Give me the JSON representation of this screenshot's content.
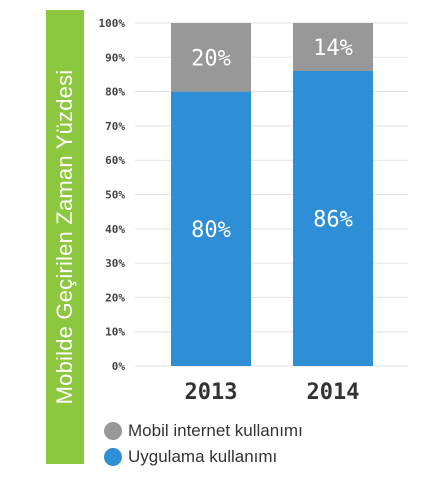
{
  "side_title": "Mobilde Geçirilen Zaman Yüzdesi",
  "chart_data": {
    "type": "bar",
    "stacked": true,
    "categories": [
      "2013",
      "2014"
    ],
    "series": [
      {
        "name": "Uygulama kullanımı",
        "values": [
          80,
          86
        ],
        "labels": [
          "80%",
          "86%"
        ],
        "color": "#2e8fd6"
      },
      {
        "name": "Mobil internet kullanımı",
        "values": [
          20,
          14
        ],
        "labels": [
          "20%",
          "14%"
        ],
        "color": "#989899"
      }
    ],
    "y_ticks": [
      "0%",
      "10%",
      "20%",
      "30%",
      "40%",
      "50%",
      "60%",
      "70%",
      "80%",
      "90%",
      "100%"
    ],
    "ylim": [
      0,
      100
    ],
    "grid": true,
    "title": "",
    "xlabel": "",
    "ylabel": ""
  },
  "legend": [
    {
      "label": "Mobil internet kullanımı",
      "color": "#989899"
    },
    {
      "label": "Uygulama kullanımı",
      "color": "#2e8fd6"
    }
  ]
}
